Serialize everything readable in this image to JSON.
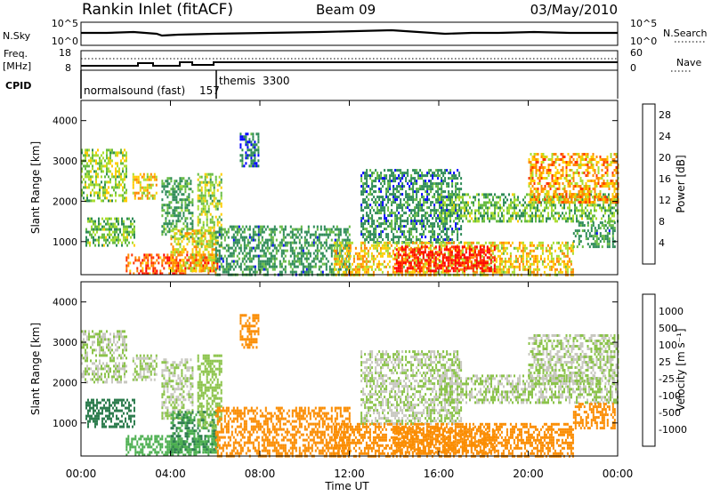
{
  "header": {
    "station": "Rankin Inlet (fitACF)",
    "beam": "Beam 09",
    "date": "03/May/2010"
  },
  "noise_panel": {
    "left_label": "N.Sky",
    "right_label": "N.Search",
    "left_ticks": [
      "10^5",
      "10^0"
    ],
    "right_ticks": [
      "10^5",
      "10^0"
    ]
  },
  "freq_panel": {
    "left_label_1": "Freq.",
    "left_label_2": "[MHz]",
    "right_label": "Nave",
    "left_ticks": [
      "18",
      "8"
    ],
    "right_ticks": [
      "60",
      "0"
    ]
  },
  "cpid_panel": {
    "label": "CPID",
    "programs": [
      {
        "name": "normalsound (fast)",
        "id": "157"
      },
      {
        "name": "themis",
        "id": "3300"
      }
    ]
  },
  "time_axis": {
    "title": "Time UT",
    "tick_labels": [
      "00:00",
      "04:00",
      "08:00",
      "12:00",
      "16:00",
      "20:00",
      "00:00"
    ]
  },
  "colors": {
    "power_scale": [
      "#0000ff",
      "#2e8b57",
      "#2e8b57",
      "#66bb44",
      "#aadd33",
      "#ffcc00",
      "#ff8800",
      "#ff3300",
      "#ff0000"
    ],
    "velocity_scale": [
      "#1f3fbf",
      "#2e7d4f",
      "#4caf50",
      "#8bc34a",
      "#c8c8c0",
      "#ffa726",
      "#fb8c00",
      "#ff5722",
      "#ff0000"
    ]
  },
  "chart_data": [
    {
      "type": "heatmap",
      "panel": "power",
      "ylabel": "Slant Range [km]",
      "xlabel": "Time UT",
      "ylim": [
        180,
        4500
      ],
      "xlim_hours": [
        0,
        24
      ],
      "y_tick_labels": [
        "1000",
        "2000",
        "3000",
        "4000"
      ],
      "y_ticks": [
        1000,
        2000,
        3000,
        4000
      ],
      "colorbar": {
        "label": "Power [dB]",
        "ticks": [
          "4",
          "8",
          "12",
          "16",
          "20",
          "24",
          "28"
        ],
        "range": [
          0,
          30
        ]
      },
      "regions": [
        {
          "t0": 0.0,
          "t1": 2.0,
          "r0": 2000,
          "r1": 3300,
          "v": 14
        },
        {
          "t0": 0.2,
          "t1": 2.4,
          "r0": 900,
          "r1": 1600,
          "v": 12
        },
        {
          "t0": 2.3,
          "t1": 3.4,
          "r0": 2100,
          "r1": 2700,
          "v": 18
        },
        {
          "t0": 3.6,
          "t1": 5.0,
          "r0": 1100,
          "r1": 2600,
          "v": 9
        },
        {
          "t0": 2.0,
          "t1": 6.1,
          "r0": 200,
          "r1": 700,
          "v": 24
        },
        {
          "t0": 4.0,
          "t1": 6.0,
          "r0": 300,
          "r1": 1300,
          "v": 18
        },
        {
          "t0": 5.2,
          "t1": 6.3,
          "r0": 900,
          "r1": 2700,
          "v": 14
        },
        {
          "t0": 7.1,
          "t1": 7.9,
          "r0": 2900,
          "r1": 3700,
          "v": 6
        },
        {
          "t0": 6.0,
          "t1": 12.0,
          "r0": 200,
          "r1": 1400,
          "v": 8
        },
        {
          "t0": 12.5,
          "t1": 17.0,
          "r0": 1000,
          "r1": 2800,
          "v": 7
        },
        {
          "t0": 11.3,
          "t1": 22.0,
          "r0": 200,
          "r1": 1000,
          "v": 18
        },
        {
          "t0": 14.0,
          "t1": 18.5,
          "r0": 300,
          "r1": 900,
          "v": 28
        },
        {
          "t0": 16.0,
          "t1": 24.0,
          "r0": 1500,
          "r1": 2200,
          "v": 12
        },
        {
          "t0": 20.0,
          "t1": 24.0,
          "r0": 2000,
          "r1": 3200,
          "v": 20
        },
        {
          "t0": 22.0,
          "t1": 23.9,
          "r0": 900,
          "r1": 1500,
          "v": 8
        }
      ]
    },
    {
      "type": "heatmap",
      "panel": "velocity",
      "ylabel": "Slant Range [km]",
      "xlabel": "Time UT",
      "ylim": [
        180,
        4500
      ],
      "xlim_hours": [
        0,
        24
      ],
      "y_tick_labels": [
        "1000",
        "2000",
        "3000",
        "4000"
      ],
      "y_ticks": [
        1000,
        2000,
        3000,
        4000
      ],
      "colorbar": {
        "label": "Velocity [m s⁻¹]",
        "ticks": [
          "1000",
          "500",
          "100",
          "25",
          "-25",
          "-100",
          "-500",
          "-1000"
        ]
      },
      "regions": [
        {
          "t0": 0.0,
          "t1": 2.0,
          "r0": 2000,
          "r1": 3300,
          "v": 0
        },
        {
          "t0": 0.2,
          "t1": 2.4,
          "r0": 900,
          "r1": 1600,
          "v": 300
        },
        {
          "t0": 2.3,
          "t1": 3.4,
          "r0": 2100,
          "r1": 2700,
          "v": 0
        },
        {
          "t0": 3.6,
          "t1": 5.0,
          "r0": 1100,
          "r1": 2600,
          "v": 0
        },
        {
          "t0": 2.0,
          "t1": 6.1,
          "r0": 200,
          "r1": 700,
          "v": 80
        },
        {
          "t0": 4.0,
          "t1": 6.0,
          "r0": 300,
          "r1": 1300,
          "v": 100
        },
        {
          "t0": 5.2,
          "t1": 6.3,
          "r0": 900,
          "r1": 2700,
          "v": 20
        },
        {
          "t0": 7.1,
          "t1": 7.9,
          "r0": 2900,
          "r1": 3700,
          "v": -200
        },
        {
          "t0": 6.0,
          "t1": 12.0,
          "r0": 200,
          "r1": 1400,
          "v": -150
        },
        {
          "t0": 12.5,
          "t1": 17.0,
          "r0": 1000,
          "r1": 2800,
          "v": 0
        },
        {
          "t0": 11.3,
          "t1": 22.0,
          "r0": 200,
          "r1": 1000,
          "v": -300
        },
        {
          "t0": 14.0,
          "t1": 18.5,
          "r0": 300,
          "r1": 900,
          "v": -350
        },
        {
          "t0": 16.0,
          "t1": 24.0,
          "r0": 1500,
          "r1": 2200,
          "v": 0
        },
        {
          "t0": 20.0,
          "t1": 24.0,
          "r0": 2000,
          "r1": 3200,
          "v": 0
        },
        {
          "t0": 22.0,
          "t1": 23.9,
          "r0": 900,
          "r1": 1500,
          "v": -200
        }
      ]
    }
  ]
}
